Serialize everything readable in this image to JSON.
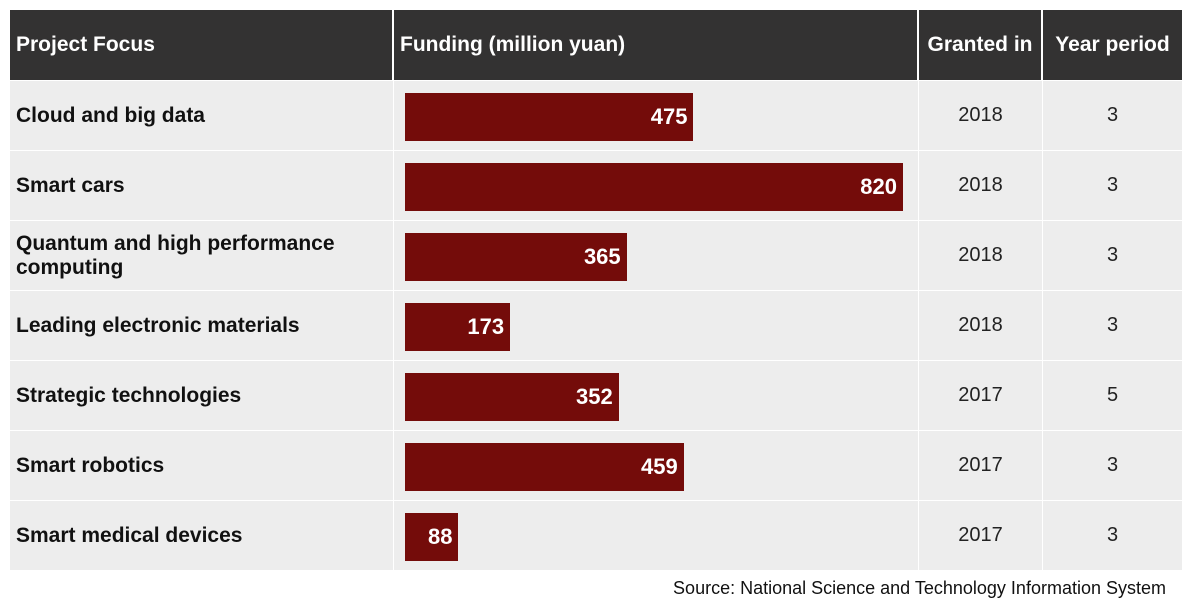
{
  "chart_data": {
    "type": "table",
    "headers": [
      "Project Focus",
      "Funding (million yuan)",
      "Granted in",
      "Year period"
    ],
    "rows": [
      {
        "focus": "Cloud and big data",
        "funding": 475,
        "granted": "2018",
        "period": "3"
      },
      {
        "focus": "Smart cars",
        "funding": 820,
        "granted": "2018",
        "period": "3"
      },
      {
        "focus": "Quantum and high performance computing",
        "funding": 365,
        "granted": "2018",
        "period": "3"
      },
      {
        "focus": "Leading electronic materials",
        "funding": 173,
        "granted": "2018",
        "period": "3"
      },
      {
        "focus": "Strategic technologies",
        "funding": 352,
        "granted": "2017",
        "period": "5"
      },
      {
        "focus": "Smart robotics",
        "funding": 459,
        "granted": "2017",
        "period": "3"
      },
      {
        "focus": "Smart medical devices",
        "funding": 88,
        "granted": "2017",
        "period": "3"
      }
    ],
    "source": "Source: National Science and Technology Information System",
    "colors": {
      "bar": "#740c0a",
      "header_bg": "#333232",
      "row_bg": "#ededed"
    }
  }
}
